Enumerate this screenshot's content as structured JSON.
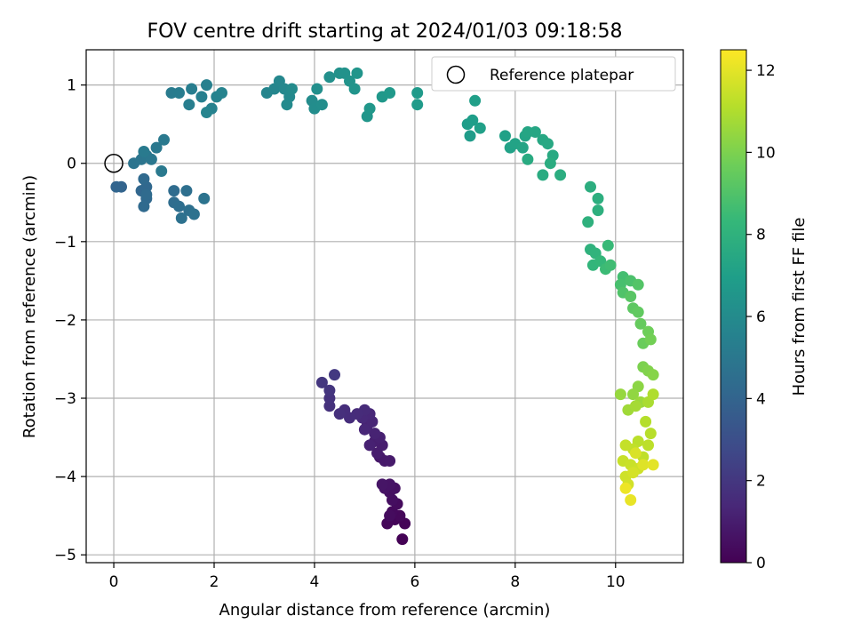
{
  "chart_data": {
    "type": "scatter",
    "title": "FOV centre drift starting at 2024/01/03 09:18:58",
    "xlabel": "Angular distance from reference (arcmin)",
    "ylabel": "Rotation from reference (arcmin)",
    "xlim": [
      -0.55,
      11.35
    ],
    "ylim": [
      -5.1,
      1.45
    ],
    "xticks": [
      0,
      2,
      4,
      6,
      8,
      10
    ],
    "yticks": [
      1,
      0,
      -1,
      -2,
      -3,
      -4,
      -5
    ],
    "xtick_labels": [
      "0",
      "2",
      "4",
      "6",
      "8",
      "10"
    ],
    "ytick_labels": [
      "1",
      "0",
      "−1",
      "−2",
      "−3",
      "−4",
      "−5"
    ],
    "grid": true,
    "legend": {
      "placement": "top-right",
      "entries": [
        "Reference platepar"
      ]
    },
    "reference_point": {
      "x": 0,
      "y": 0,
      "label": "Reference platepar"
    },
    "colorbar": {
      "label": "Hours from first FF file",
      "range": [
        0,
        12.5
      ],
      "ticks": [
        0,
        2,
        4,
        6,
        8,
        10,
        12
      ],
      "tick_labels": [
        "0",
        "2",
        "4",
        "6",
        "8",
        "10",
        "12"
      ],
      "colormap": "viridis",
      "colors": [
        "#440154",
        "#482878",
        "#3e4a89",
        "#31688e",
        "#26828e",
        "#1f9e89",
        "#35b779",
        "#6ece58",
        "#b5de2b",
        "#fde725"
      ]
    },
    "points": [
      [
        5.75,
        -4.8,
        0.05
      ],
      [
        5.8,
        -4.6,
        0.1
      ],
      [
        5.6,
        -4.55,
        0.15
      ],
      [
        5.45,
        -4.6,
        0.2
      ],
      [
        5.7,
        -4.5,
        0.25
      ],
      [
        5.55,
        -4.45,
        0.3
      ],
      [
        5.65,
        -4.35,
        0.35
      ],
      [
        5.5,
        -4.5,
        0.4
      ],
      [
        5.55,
        -4.3,
        0.45
      ],
      [
        5.5,
        -4.2,
        0.5
      ],
      [
        5.6,
        -4.15,
        0.55
      ],
      [
        5.4,
        -4.15,
        0.6
      ],
      [
        5.5,
        -4.1,
        0.65
      ],
      [
        5.35,
        -4.1,
        0.7
      ],
      [
        5.3,
        -3.75,
        0.8
      ],
      [
        5.4,
        -3.8,
        0.85
      ],
      [
        5.5,
        -3.8,
        0.9
      ],
      [
        5.25,
        -3.7,
        0.95
      ],
      [
        5.35,
        -3.6,
        1.0
      ],
      [
        5.2,
        -3.55,
        1.05
      ],
      [
        5.3,
        -3.5,
        1.1
      ],
      [
        5.1,
        -3.6,
        1.15
      ],
      [
        5.2,
        -3.45,
        1.2
      ],
      [
        5.05,
        -3.35,
        1.25
      ],
      [
        5.15,
        -3.3,
        1.3
      ],
      [
        5.0,
        -3.4,
        1.35
      ],
      [
        5.1,
        -3.2,
        1.4
      ],
      [
        4.95,
        -3.25,
        1.45
      ],
      [
        5.0,
        -3.15,
        1.5
      ],
      [
        4.85,
        -3.2,
        1.55
      ],
      [
        4.7,
        -3.25,
        1.6
      ],
      [
        4.6,
        -3.15,
        1.65
      ],
      [
        4.5,
        -3.2,
        1.7
      ],
      [
        4.3,
        -3.1,
        1.75
      ],
      [
        4.3,
        -3.0,
        1.8
      ],
      [
        4.3,
        -2.9,
        1.9
      ],
      [
        4.15,
        -2.8,
        2.0
      ],
      [
        4.4,
        -2.7,
        2.1
      ],
      [
        0.15,
        -0.3,
        4.0
      ],
      [
        0.05,
        -0.3,
        4.05
      ],
      [
        0.55,
        -0.35,
        4.1
      ],
      [
        0.65,
        -0.3,
        4.15
      ],
      [
        0.65,
        -0.45,
        4.2
      ],
      [
        0.6,
        -0.55,
        4.25
      ],
      [
        0.6,
        -0.2,
        4.3
      ],
      [
        0.65,
        -0.4,
        4.35
      ],
      [
        1.2,
        -0.35,
        4.4
      ],
      [
        1.2,
        -0.5,
        4.45
      ],
      [
        1.3,
        -0.55,
        4.5
      ],
      [
        1.45,
        -0.35,
        4.55
      ],
      [
        1.5,
        -0.6,
        4.6
      ],
      [
        1.35,
        -0.7,
        4.65
      ],
      [
        1.6,
        -0.65,
        4.7
      ],
      [
        1.8,
        -0.45,
        4.75
      ],
      [
        0.4,
        0.0,
        4.8
      ],
      [
        0.55,
        0.05,
        4.85
      ],
      [
        0.65,
        0.1,
        4.9
      ],
      [
        0.75,
        0.05,
        4.95
      ],
      [
        0.85,
        0.2,
        5.0
      ],
      [
        1.0,
        0.3,
        5.05
      ],
      [
        0.95,
        -0.1,
        5.1
      ],
      [
        0.6,
        0.15,
        5.15
      ],
      [
        1.15,
        0.9,
        5.2
      ],
      [
        1.3,
        0.9,
        5.25
      ],
      [
        1.55,
        0.95,
        5.3
      ],
      [
        1.5,
        0.75,
        5.35
      ],
      [
        1.75,
        0.85,
        5.4
      ],
      [
        1.85,
        1.0,
        5.45
      ],
      [
        1.95,
        0.7,
        5.5
      ],
      [
        2.05,
        0.85,
        5.55
      ],
      [
        2.15,
        0.9,
        5.6
      ],
      [
        1.85,
        0.65,
        5.65
      ],
      [
        3.05,
        0.9,
        5.7
      ],
      [
        3.2,
        0.95,
        5.75
      ],
      [
        3.3,
        1.05,
        5.8
      ],
      [
        3.4,
        0.95,
        5.85
      ],
      [
        3.5,
        0.85,
        5.9
      ],
      [
        3.45,
        0.75,
        5.95
      ],
      [
        3.55,
        0.95,
        6.0
      ],
      [
        3.95,
        0.8,
        6.05
      ],
      [
        4.0,
        0.7,
        6.1
      ],
      [
        4.15,
        0.75,
        6.15
      ],
      [
        4.05,
        0.95,
        6.2
      ],
      [
        4.3,
        1.1,
        6.25
      ],
      [
        4.5,
        1.15,
        6.3
      ],
      [
        4.6,
        1.15,
        6.35
      ],
      [
        4.7,
        1.05,
        6.4
      ],
      [
        4.8,
        0.95,
        6.45
      ],
      [
        4.85,
        1.15,
        6.5
      ],
      [
        5.05,
        0.6,
        6.55
      ],
      [
        5.1,
        0.7,
        6.6
      ],
      [
        5.35,
        0.85,
        6.65
      ],
      [
        5.5,
        0.9,
        6.7
      ],
      [
        6.05,
        0.9,
        6.75
      ],
      [
        6.05,
        0.75,
        6.8
      ],
      [
        7.1,
        0.35,
        6.85
      ],
      [
        7.05,
        0.5,
        6.9
      ],
      [
        7.15,
        0.55,
        6.95
      ],
      [
        7.2,
        0.8,
        7.0
      ],
      [
        7.3,
        0.45,
        7.05
      ],
      [
        7.8,
        0.35,
        7.1
      ],
      [
        7.9,
        0.2,
        7.15
      ],
      [
        8.0,
        0.25,
        7.2
      ],
      [
        8.2,
        0.35,
        7.25
      ],
      [
        8.15,
        0.2,
        7.3
      ],
      [
        8.25,
        0.4,
        7.35
      ],
      [
        8.4,
        0.4,
        7.4
      ],
      [
        8.55,
        0.3,
        7.45
      ],
      [
        8.65,
        0.25,
        7.5
      ],
      [
        8.75,
        0.1,
        7.55
      ],
      [
        8.25,
        0.05,
        7.6
      ],
      [
        8.55,
        -0.15,
        7.65
      ],
      [
        8.7,
        0.0,
        7.7
      ],
      [
        8.9,
        -0.15,
        7.75
      ],
      [
        9.5,
        -0.3,
        7.8
      ],
      [
        9.65,
        -0.45,
        7.85
      ],
      [
        9.65,
        -0.6,
        7.9
      ],
      [
        9.45,
        -0.75,
        7.95
      ],
      [
        9.5,
        -1.1,
        8.0
      ],
      [
        9.6,
        -1.15,
        8.1
      ],
      [
        9.55,
        -1.3,
        8.2
      ],
      [
        9.7,
        -1.25,
        8.3
      ],
      [
        9.85,
        -1.05,
        8.4
      ],
      [
        9.8,
        -1.35,
        8.5
      ],
      [
        9.9,
        -1.3,
        8.6
      ],
      [
        10.15,
        -1.45,
        8.7
      ],
      [
        10.1,
        -1.55,
        8.8
      ],
      [
        10.3,
        -1.5,
        8.9
      ],
      [
        10.15,
        -1.65,
        9.0
      ],
      [
        10.45,
        -1.55,
        9.1
      ],
      [
        10.3,
        -1.7,
        9.2
      ],
      [
        10.35,
        -1.85,
        9.3
      ],
      [
        10.45,
        -1.9,
        9.4
      ],
      [
        10.5,
        -2.05,
        9.5
      ],
      [
        10.55,
        -2.3,
        9.6
      ],
      [
        10.65,
        -2.15,
        9.7
      ],
      [
        10.7,
        -2.25,
        9.8
      ],
      [
        10.55,
        -2.6,
        10.0
      ],
      [
        10.65,
        -2.65,
        10.1
      ],
      [
        10.75,
        -2.7,
        10.2
      ],
      [
        10.45,
        -2.85,
        10.3
      ],
      [
        10.35,
        -2.95,
        10.4
      ],
      [
        10.1,
        -2.95,
        10.5
      ],
      [
        10.5,
        -3.05,
        10.6
      ],
      [
        10.25,
        -3.15,
        10.7
      ],
      [
        10.4,
        -3.1,
        10.8
      ],
      [
        10.65,
        -3.05,
        10.9
      ],
      [
        10.75,
        -2.95,
        11.0
      ],
      [
        10.6,
        -3.3,
        11.1
      ],
      [
        10.7,
        -3.45,
        11.15
      ],
      [
        10.45,
        -3.55,
        11.2
      ],
      [
        10.65,
        -3.6,
        11.25
      ],
      [
        10.55,
        -3.75,
        11.3
      ],
      [
        10.35,
        -3.65,
        11.35
      ],
      [
        10.2,
        -3.6,
        11.4
      ],
      [
        10.15,
        -3.8,
        11.45
      ],
      [
        10.3,
        -3.85,
        11.5
      ],
      [
        10.45,
        -3.9,
        11.55
      ],
      [
        10.2,
        -4.0,
        11.6
      ],
      [
        10.25,
        -4.1,
        11.65
      ],
      [
        10.35,
        -3.95,
        11.7
      ],
      [
        10.4,
        -3.7,
        11.8
      ],
      [
        10.55,
        -3.85,
        11.9
      ],
      [
        10.75,
        -3.85,
        12.0
      ],
      [
        10.3,
        -4.3,
        12.1
      ],
      [
        10.2,
        -4.15,
        12.2
      ]
    ]
  }
}
